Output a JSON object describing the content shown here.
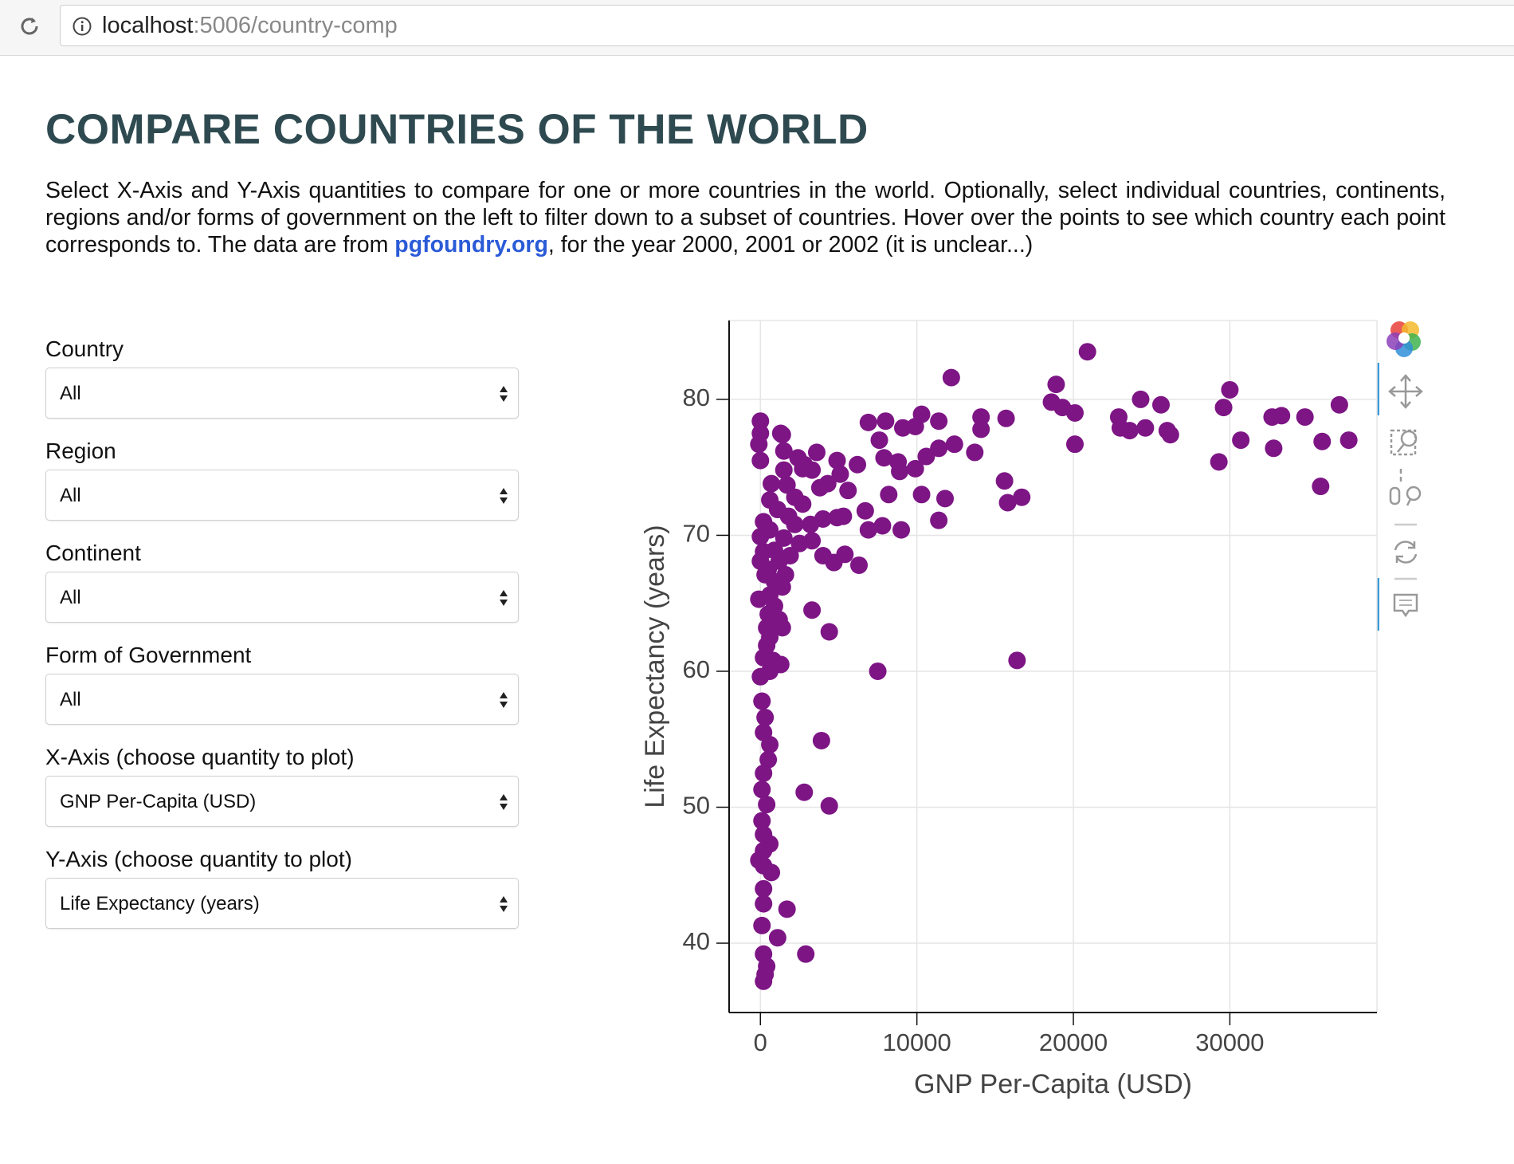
{
  "browser": {
    "url_host": "localhost",
    "url_path": ":5006/country-comp"
  },
  "header": {
    "title": "COMPARE COUNTRIES OF THE WORLD"
  },
  "description": {
    "before": "Select X-Axis and Y-Axis quantities to compare for one or more countries in the world. Optionally, select individual countries, continents, regions and/or forms of government on the left to filter down to a subset of countries. Hover over the points to see which country each point corresponds to. The data are from ",
    "link": "pgfoundry.org",
    "after": ", for the year 2000, 2001 or 2002 (it is unclear...)"
  },
  "filters": [
    {
      "label": "Country",
      "value": "All"
    },
    {
      "label": "Region",
      "value": "All"
    },
    {
      "label": "Continent",
      "value": "All"
    },
    {
      "label": "Form of Government",
      "value": "All"
    },
    {
      "label": "X-Axis (choose quantity to plot)",
      "value": "GNP Per-Capita (USD)"
    },
    {
      "label": "Y-Axis (choose quantity to plot)",
      "value": "Life Expectancy (years)"
    }
  ],
  "chart_data": {
    "type": "scatter",
    "x_label": "GNP Per-Capita (USD)",
    "y_label": "Life Expectancy (years)",
    "color": "#7d1585",
    "grid": true,
    "xlim": [
      -2000,
      39400
    ],
    "ylim": [
      34.9,
      85.8
    ],
    "xticks": [
      0,
      10000,
      20000,
      30000
    ],
    "yticks": [
      40,
      50,
      60,
      70,
      80
    ],
    "x": [
      20900,
      12200,
      18900,
      30000,
      24300,
      37000,
      18600,
      29600,
      25600,
      19300,
      20100,
      10300,
      14100,
      15700,
      22900,
      33300,
      34800,
      32700,
      6900,
      8000,
      11400,
      9100,
      9900,
      14100,
      23600,
      24600,
      23000,
      26000,
      26200,
      30700,
      35900,
      37600,
      20100,
      32800,
      12400,
      11400,
      13700,
      10600,
      7600,
      7900,
      8800,
      9900,
      8900,
      29300,
      15600,
      35800,
      15800,
      16700,
      10300,
      11800,
      11400,
      8200,
      6700,
      6900,
      7800,
      9000,
      16400,
      7500,
      6300,
      5400,
      4700,
      4000,
      3300,
      4400,
      3900,
      2800,
      4400,
      1700,
      1100,
      2900,
      4900,
      3600,
      6200,
      5100,
      4300,
      5600,
      3800,
      4900,
      4000,
      3200,
      5300,
      2400,
      1500,
      1400,
      2800,
      3300,
      700,
      1700,
      2200,
      2700,
      1100,
      1800,
      2200,
      600,
      1500,
      2500,
      900,
      1900,
      1200,
      0,
      500,
      1600,
      900,
      1400,
      600,
      -100,
      900,
      500,
      1200,
      400,
      1400,
      600,
      400,
      200,
      800,
      1300,
      0,
      600,
      100,
      300,
      200,
      600,
      500,
      200,
      100,
      400,
      100,
      200,
      600,
      200,
      -100,
      200,
      700,
      200,
      200,
      100,
      200,
      400,
      300,
      200,
      0,
      0,
      -100,
      0,
      1300,
      1500,
      600,
      200,
      0,
      200,
      300,
      2700,
      3300
    ],
    "values": [
      83.5,
      81.6,
      81.1,
      80.7,
      80.0,
      79.6,
      79.8,
      79.4,
      79.6,
      79.4,
      79.0,
      78.9,
      78.7,
      78.6,
      78.7,
      78.8,
      78.7,
      78.7,
      78.3,
      78.4,
      78.4,
      77.9,
      78.0,
      77.8,
      77.7,
      77.9,
      77.9,
      77.7,
      77.4,
      77.0,
      76.9,
      77.0,
      76.7,
      76.4,
      76.7,
      76.4,
      76.1,
      75.8,
      77.0,
      75.7,
      75.4,
      74.9,
      74.7,
      75.4,
      74.0,
      73.6,
      72.4,
      72.8,
      73.0,
      72.7,
      71.1,
      73.0,
      71.8,
      70.4,
      70.7,
      70.4,
      60.8,
      60.0,
      67.8,
      68.6,
      68.0,
      68.5,
      64.5,
      62.9,
      54.9,
      51.1,
      50.1,
      42.5,
      40.4,
      39.2,
      75.5,
      76.1,
      75.2,
      74.5,
      73.8,
      73.3,
      73.5,
      71.3,
      71.2,
      70.8,
      71.4,
      75.7,
      76.2,
      77.4,
      75.2,
      74.8,
      73.8,
      73.7,
      72.8,
      72.3,
      71.9,
      71.4,
      70.8,
      70.4,
      69.8,
      69.4,
      68.9,
      68.5,
      68.1,
      68.1,
      67.5,
      67.1,
      66.6,
      66.2,
      65.6,
      65.3,
      64.8,
      64.2,
      63.8,
      63.2,
      63.2,
      62.5,
      61.9,
      61.0,
      60.8,
      60.5,
      59.6,
      60.0,
      57.8,
      56.6,
      55.5,
      54.6,
      53.5,
      52.5,
      51.3,
      50.2,
      49.0,
      48.0,
      47.3,
      46.8,
      46.1,
      45.7,
      45.2,
      44.0,
      42.9,
      41.3,
      39.2,
      38.3,
      37.7,
      37.2,
      78.4,
      77.5,
      76.7,
      75.5,
      77.5,
      74.8,
      72.6,
      71.0,
      69.9,
      68.8,
      67.1,
      74.9,
      69.6
    ]
  }
}
